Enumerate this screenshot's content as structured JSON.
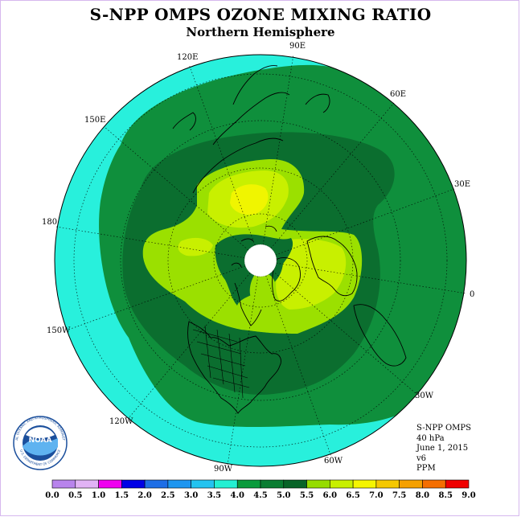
{
  "title": "S-NPP OMPS OZONE MIXING RATIO",
  "subtitle": "Northern Hemisphere",
  "longitude_labels": [
    "90E",
    "60E",
    "30E",
    "0",
    "30W",
    "60W",
    "90W",
    "120W",
    "150W",
    "180",
    "150E",
    "120E"
  ],
  "info": {
    "instrument": "S-NPP OMPS",
    "level": "40 hPa",
    "date": "June 1, 2015",
    "version": "v6",
    "units": "PPM"
  },
  "logo_text": {
    "name": "NOAA",
    "ring_top": "NATIONAL OCEANIC AND ATMOSPHERIC ADMINISTRATION",
    "ring_bottom": "U.S. DEPARTMENT OF COMMERCE"
  },
  "colorbar": {
    "ticks": [
      "0.0",
      "0.5",
      "1.0",
      "1.5",
      "2.0",
      "2.5",
      "3.0",
      "3.5",
      "4.0",
      "4.5",
      "5.0",
      "5.5",
      "6.0",
      "6.5",
      "7.0",
      "7.5",
      "8.0",
      "8.5",
      "9.0"
    ],
    "colors": [
      "#b884ec",
      "#e1b3f5",
      "#f000f0",
      "#0000e6",
      "#1e6ee6",
      "#1e96f0",
      "#23c3f0",
      "#23f0d2",
      "#0a9b3c",
      "#0a7d32",
      "#086428",
      "#96dc00",
      "#c8f000",
      "#f5f500",
      "#f5c800",
      "#f5a000",
      "#f56e00",
      "#f00000",
      "#8c5a32"
    ]
  },
  "map_colors": {
    "band_3_5_to_4_0": "#28f0dc",
    "band_4_0_to_4_5": "#0f8f3c",
    "band_4_5_to_5_0": "#0b6e2f",
    "band_5_0_to_5_5": "#9be000",
    "band_5_5_to_6_0": "#c8f000",
    "band_6_0_to_6_5": "#f0f500",
    "pole_hole": "#ffffff"
  }
}
